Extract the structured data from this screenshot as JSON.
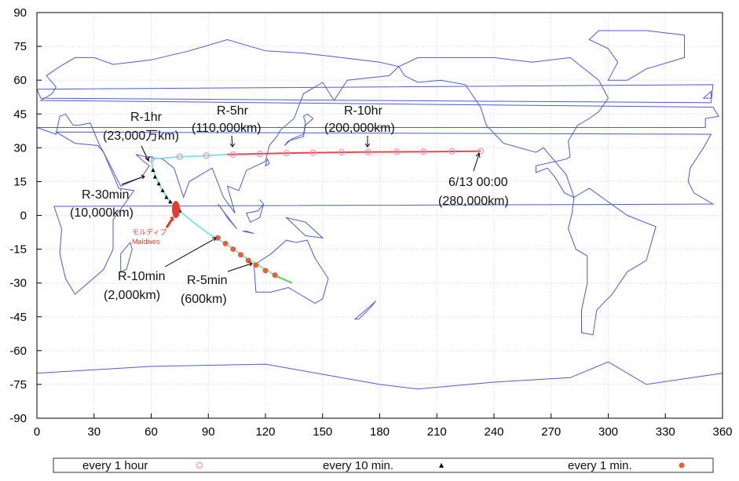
{
  "chart_data": {
    "type": "scatter",
    "title": "",
    "xlabel": "",
    "ylabel": "",
    "xlim": [
      0,
      360
    ],
    "ylim": [
      -90,
      90
    ],
    "xticks": [
      "0",
      "30",
      "60",
      "90",
      "120",
      "150",
      "180",
      "210",
      "240",
      "270",
      "300",
      "330",
      "360"
    ],
    "yticks": [
      "90",
      "75",
      "60",
      "45",
      "30",
      "15",
      "0",
      "-15",
      "-30",
      "-45",
      "-60",
      "-75",
      "-90"
    ],
    "grid": true,
    "legend_position": "bottom",
    "legend": [
      {
        "label": "every  1 hour",
        "marker": "open-circle",
        "color": "#f28ad8"
      },
      {
        "label": "every 10 min.",
        "marker": "triangle",
        "color": "#000000"
      },
      {
        "label": "every  1 min.",
        "marker": "filled-circle",
        "color": "#e8602c"
      }
    ],
    "series": [
      {
        "name": "every  1 hour",
        "marker": "open-circle",
        "color": "#f28ad8",
        "points": [
          [
            60,
            25
          ],
          [
            75,
            26
          ],
          [
            89,
            26.5
          ],
          [
            103,
            27
          ],
          [
            117,
            27.3
          ],
          [
            131,
            27.6
          ],
          [
            145,
            27.8
          ],
          [
            160,
            28
          ],
          [
            174,
            28.1
          ],
          [
            189,
            28.2
          ],
          [
            203,
            28.3
          ],
          [
            218,
            28.4
          ],
          [
            233,
            28.5
          ]
        ]
      },
      {
        "name": "every 10 min.",
        "marker": "triangle",
        "color": "#000000",
        "points": [
          [
            61,
            20
          ],
          [
            62,
            17
          ],
          [
            64,
            14
          ],
          [
            66,
            11
          ],
          [
            68,
            8
          ],
          [
            70,
            6
          ],
          [
            73,
            4
          ],
          [
            75,
            2
          ]
        ]
      },
      {
        "name": "every  1 min.",
        "marker": "filled-circle",
        "color": "#e8602c",
        "points": [
          [
            95,
            -10
          ],
          [
            99,
            -12.5
          ],
          [
            103,
            -15
          ],
          [
            107,
            -17.5
          ],
          [
            111,
            -20
          ],
          [
            115,
            -22
          ],
          [
            120,
            -24.5
          ],
          [
            125,
            -26.5
          ]
        ]
      }
    ],
    "track_segments": [
      {
        "color": "#7ee6e6",
        "points": [
          [
            60,
            25
          ],
          [
            75,
            26
          ],
          [
            89,
            26.5
          ],
          [
            100,
            27
          ]
        ]
      },
      {
        "color": "#e8484a",
        "points": [
          [
            100,
            27
          ],
          [
            130,
            27.6
          ],
          [
            170,
            28.1
          ],
          [
            210,
            28.3
          ],
          [
            233,
            28.5
          ]
        ]
      },
      {
        "color": "#7ee6e6",
        "points": [
          [
            60,
            25
          ],
          [
            61,
            20
          ],
          [
            64,
            14
          ],
          [
            68,
            8
          ],
          [
            75,
            2
          ],
          [
            82,
            -3
          ],
          [
            90,
            -8
          ],
          [
            100,
            -13
          ],
          [
            110,
            -19
          ],
          [
            120,
            -24
          ],
          [
            126,
            -27
          ],
          [
            128,
            -28
          ]
        ]
      },
      {
        "color": "#5ccf5c",
        "points": [
          [
            126,
            -27
          ],
          [
            130,
            -28.5
          ],
          [
            134,
            -30
          ]
        ]
      }
    ],
    "annotations": [
      {
        "lines": [
          "R-1hr",
          "(23,000万km)"
        ]
      },
      {
        "lines": [
          "R-5hr",
          "(110,000km)"
        ]
      },
      {
        "lines": [
          "R-10hr",
          "(200,000km)"
        ]
      },
      {
        "lines": [
          "6/13 00:00",
          "(280,000km)"
        ]
      },
      {
        "lines": [
          "R-30min",
          "(10,000km)"
        ]
      },
      {
        "lines": [
          "R-10min",
          "(2,000km)"
        ]
      },
      {
        "lines": [
          "R-5min",
          "(600km)"
        ]
      },
      {
        "lines": [
          "モルディブ",
          "Maldives"
        ]
      }
    ]
  }
}
